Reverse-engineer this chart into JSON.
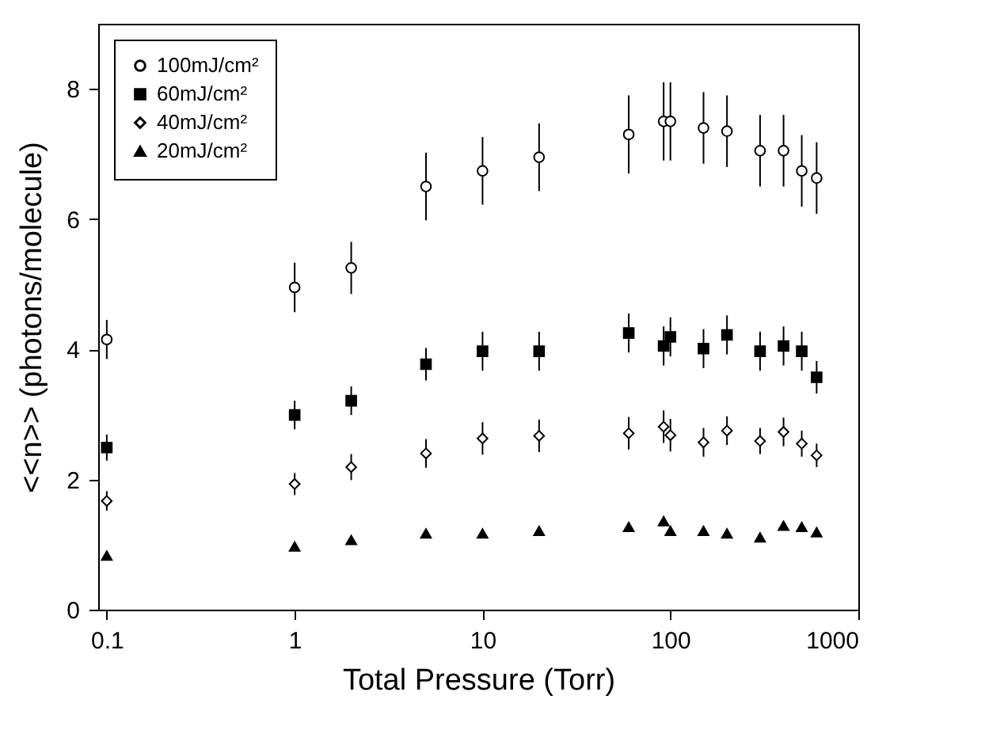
{
  "chart_data": {
    "type": "scatter",
    "xlabel": "Total Pressure (Torr)",
    "ylabel": "<<n>> (photons/molecule)",
    "x": [
      0.1,
      1,
      2,
      5,
      10,
      20,
      60,
      92,
      100,
      150,
      200,
      300,
      400,
      500,
      600
    ],
    "xlim": [
      0.09,
      1000
    ],
    "xticks": [
      0.1,
      1,
      10,
      100,
      1000
    ],
    "log": "x",
    "ylim": [
      0,
      9
    ],
    "yticks": [
      0,
      2,
      4,
      6,
      8
    ],
    "grid": false,
    "legend": "top left",
    "series": [
      {
        "name": "100mJ/cm²",
        "color": "#000000",
        "marker": "circle",
        "values": [
          4.15,
          4.95,
          5.25,
          6.5,
          6.74,
          6.95,
          7.3,
          7.5,
          7.5,
          7.4,
          7.35,
          7.05,
          7.05,
          6.74,
          6.63
        ],
        "errors": [
          0.3,
          0.38,
          0.4,
          0.52,
          0.52,
          0.52,
          0.6,
          0.6,
          0.6,
          0.55,
          0.55,
          0.55,
          0.55,
          0.55,
          0.55
        ]
      },
      {
        "name": "60mJ/cm²",
        "color": "#000000",
        "marker": "square",
        "values": [
          2.49,
          2.99,
          3.21,
          3.77,
          3.97,
          3.97,
          4.25,
          4.05,
          4.19,
          4.01,
          4.22,
          3.97,
          4.05,
          3.97,
          3.57
        ],
        "errors": [
          0.2,
          0.22,
          0.22,
          0.25,
          0.3,
          0.3,
          0.3,
          0.3,
          0.3,
          0.3,
          0.3,
          0.3,
          0.3,
          0.3,
          0.25
        ]
      },
      {
        "name": "40mJ/cm²",
        "color": "#000000",
        "marker": "diamond",
        "values": [
          1.67,
          1.93,
          2.19,
          2.4,
          2.63,
          2.67,
          2.71,
          2.81,
          2.68,
          2.57,
          2.75,
          2.59,
          2.73,
          2.55,
          2.37
        ],
        "errors": [
          0.15,
          0.17,
          0.2,
          0.22,
          0.25,
          0.25,
          0.25,
          0.25,
          0.25,
          0.22,
          0.22,
          0.2,
          0.22,
          0.2,
          0.18
        ]
      },
      {
        "name": "20mJ/cm²",
        "color": "#000000",
        "marker": "triangle",
        "values": [
          0.83,
          0.97,
          1.07,
          1.17,
          1.17,
          1.21,
          1.27,
          1.36,
          1.21,
          1.21,
          1.17,
          1.11,
          1.29,
          1.27,
          1.19
        ],
        "errors": [
          0.04,
          0.05,
          0.05,
          0.06,
          0.06,
          0.06,
          0.07,
          0.08,
          0.07,
          0.07,
          0.07,
          0.07,
          0.07,
          0.07,
          0.07
        ]
      }
    ]
  }
}
